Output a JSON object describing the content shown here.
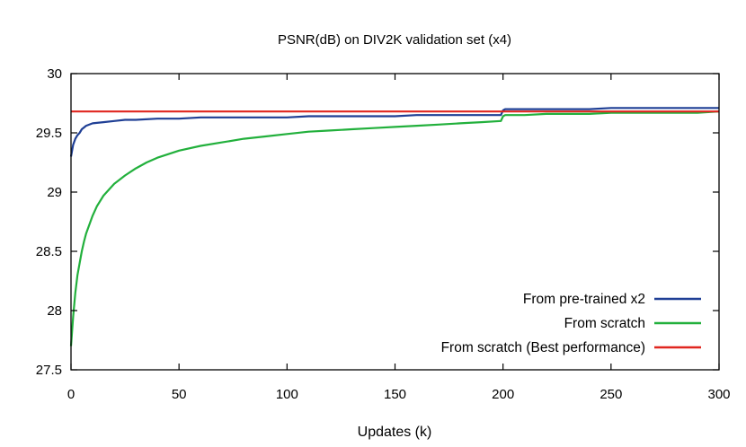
{
  "chart_data": {
    "type": "line",
    "title": "PSNR(dB) on DIV2K validation set (x4)",
    "xlabel": "Updates (k)",
    "ylabel": "",
    "xlim": [
      0,
      300
    ],
    "ylim": [
      27.5,
      30
    ],
    "x_ticks": [
      "0",
      "50",
      "100",
      "150",
      "200",
      "250",
      "300"
    ],
    "y_ticks": [
      "27.5",
      "28",
      "28.5",
      "29",
      "29.5",
      "30"
    ],
    "grid": false,
    "legend_position": "bottom-right",
    "series": [
      {
        "name": "From pre-trained x2",
        "color": "#1f3f95",
        "x": [
          0,
          1,
          2,
          3,
          4,
          5,
          7,
          10,
          15,
          20,
          25,
          30,
          40,
          50,
          60,
          70,
          80,
          90,
          100,
          110,
          120,
          130,
          140,
          150,
          160,
          170,
          180,
          190,
          199,
          200,
          201,
          205,
          210,
          220,
          230,
          240,
          250,
          260,
          270,
          280,
          290,
          300
        ],
        "y": [
          29.3,
          29.4,
          29.45,
          29.48,
          29.5,
          29.53,
          29.56,
          29.58,
          29.59,
          29.6,
          29.61,
          29.61,
          29.62,
          29.62,
          29.63,
          29.63,
          29.63,
          29.63,
          29.63,
          29.64,
          29.64,
          29.64,
          29.64,
          29.64,
          29.65,
          29.65,
          29.65,
          29.65,
          29.65,
          29.69,
          29.7,
          29.7,
          29.7,
          29.7,
          29.7,
          29.7,
          29.71,
          29.71,
          29.71,
          29.71,
          29.71,
          29.71
        ]
      },
      {
        "name": "From scratch",
        "color": "#22b03c",
        "x": [
          0,
          1,
          2,
          3,
          4,
          5,
          6,
          7,
          8,
          10,
          12,
          15,
          20,
          25,
          30,
          35,
          40,
          50,
          60,
          70,
          80,
          90,
          100,
          110,
          120,
          130,
          140,
          150,
          160,
          170,
          180,
          190,
          199,
          200,
          201,
          205,
          210,
          220,
          230,
          240,
          250,
          260,
          270,
          280,
          290,
          300
        ],
        "y": [
          27.7,
          27.95,
          28.15,
          28.3,
          28.4,
          28.5,
          28.58,
          28.65,
          28.7,
          28.8,
          28.88,
          28.97,
          29.07,
          29.14,
          29.2,
          29.25,
          29.29,
          29.35,
          29.39,
          29.42,
          29.45,
          29.47,
          29.49,
          29.51,
          29.52,
          29.53,
          29.54,
          29.55,
          29.56,
          29.57,
          29.58,
          29.59,
          29.6,
          29.64,
          29.65,
          29.65,
          29.65,
          29.66,
          29.66,
          29.66,
          29.67,
          29.67,
          29.67,
          29.67,
          29.67,
          29.68
        ]
      },
      {
        "name": "From scratch (Best performance)",
        "color": "#e0261f",
        "x": [
          0,
          300
        ],
        "y": [
          29.68,
          29.68
        ]
      }
    ]
  }
}
